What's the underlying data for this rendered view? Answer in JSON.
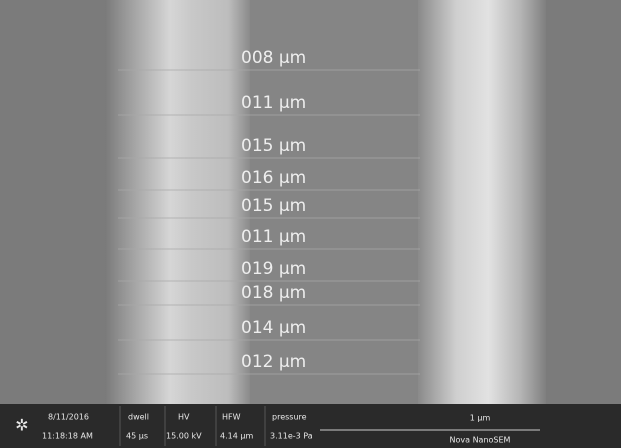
{
  "measurements": [
    "008 µm",
    "011 µm",
    "015 µm",
    "016 µm",
    "015 µm",
    "011 µm",
    "019 µm",
    "018 µm",
    "014 µm",
    "012 µm"
  ],
  "info_bar": {
    "date": "8/11/2016",
    "time": "11:18:18 AM",
    "dwell_label": "dwell",
    "dwell": "45 µs",
    "hv_label": "HV",
    "hv": "15.00 kV",
    "hfw_label": "HFW",
    "hfw": "4.14 µm",
    "pressure_label": "pressure",
    "pressure": "3.11e-3 Pa",
    "scale": "1 µm",
    "instrument": "Nova NanoSEM"
  }
}
